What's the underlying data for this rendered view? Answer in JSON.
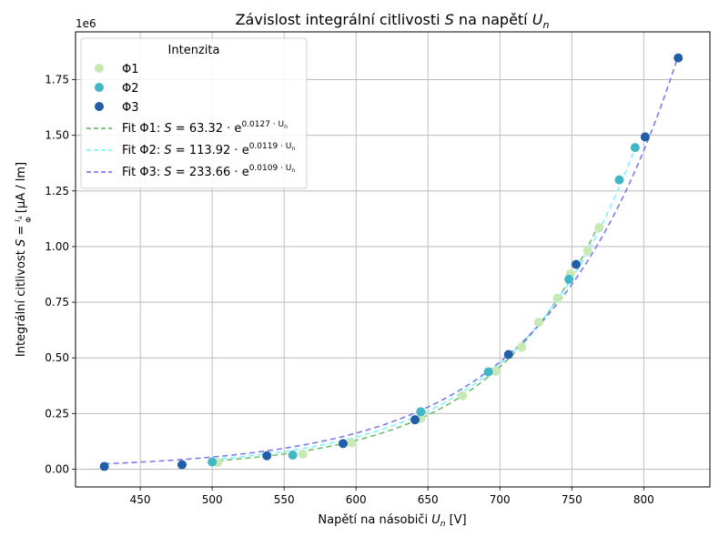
{
  "chart_data": {
    "type": "scatter",
    "title_prefix": "Závislost integrální citlivosti ",
    "title_s": "S",
    "title_mid": " na napětí ",
    "title_u": "U",
    "title_sub": "n",
    "xlabel_prefix": "Napětí na násobiči ",
    "xlabel_u": "U",
    "xlabel_sub": "n",
    "xlabel_suffix": " [V]",
    "ylabel_prefix": "Integrální citlivost ",
    "ylabel_s": "S",
    "ylabel_eq": " = ",
    "ylabel_frac_num": "I",
    "ylabel_frac_num_sub": "a",
    "ylabel_frac_den": "Φ",
    "ylabel_unit": " [μA / lm]",
    "y_multiplier_label": "1e6",
    "xlim": [
      405,
      846
    ],
    "ylim": [
      -80000,
      1965000
    ],
    "x_ticks": [
      450,
      500,
      550,
      600,
      650,
      700,
      750,
      800
    ],
    "y_ticks": [
      0,
      250000,
      500000,
      750000,
      1000000,
      1250000,
      1500000,
      1750000
    ],
    "y_tick_labels": [
      "0.00",
      "0.25",
      "0.50",
      "0.75",
      "1.00",
      "1.25",
      "1.50",
      "1.75"
    ],
    "grid": true,
    "legend": {
      "title": "Intenzita",
      "placement": "top-left"
    },
    "series": [
      {
        "name": "Φ1",
        "color": "#c7e9b4",
        "points": [
          [
            504,
            30000
          ],
          [
            563,
            68000
          ],
          [
            597,
            118000
          ],
          [
            645,
            228000
          ],
          [
            674,
            330000
          ],
          [
            697,
            440000
          ],
          [
            715,
            548000
          ],
          [
            727,
            660000
          ],
          [
            740,
            768000
          ],
          [
            749,
            878000
          ],
          [
            761,
            980000
          ],
          [
            769,
            1085000
          ]
        ]
      },
      {
        "name": "Φ2",
        "color": "#41b6c4",
        "points": [
          [
            500,
            32000
          ],
          [
            556,
            63000
          ],
          [
            645,
            258000
          ],
          [
            692,
            437000
          ],
          [
            748,
            853000
          ],
          [
            783,
            1300000
          ],
          [
            794,
            1445000
          ]
        ]
      },
      {
        "name": "Φ3",
        "color": "#225ea8",
        "points": [
          [
            425,
            12000
          ],
          [
            479,
            20000
          ],
          [
            538,
            60000
          ],
          [
            591,
            115000
          ],
          [
            641,
            222000
          ],
          [
            706,
            515000
          ],
          [
            753,
            920000
          ],
          [
            801,
            1493000
          ],
          [
            824,
            1848000
          ]
        ]
      }
    ],
    "fits": [
      {
        "label_prefix": "Fit Φ1: ",
        "formula_lhs": "S",
        "formula_coef": " = 63.32 · e",
        "formula_exp": "0.0127 · U",
        "formula_exp_sub": "n",
        "a": 63.32,
        "b": 0.0127,
        "x_range": [
          504,
          769
        ],
        "color": "#6dbf6d"
      },
      {
        "label_prefix": "Fit Φ2: ",
        "formula_lhs": "S",
        "formula_coef": " = 113.92 · e",
        "formula_exp": "0.0119 · U",
        "formula_exp_sub": "n",
        "a": 113.92,
        "b": 0.0119,
        "x_range": [
          500,
          794
        ],
        "color": "#7ff5ff"
      },
      {
        "label_prefix": "Fit Φ3: ",
        "formula_lhs": "S",
        "formula_coef": " = 233.66 · e",
        "formula_exp": "0.0109 · U",
        "formula_exp_sub": "n",
        "a": 233.66,
        "b": 0.0109,
        "x_range": [
          425,
          824
        ],
        "color": "#7b7bef"
      }
    ]
  }
}
